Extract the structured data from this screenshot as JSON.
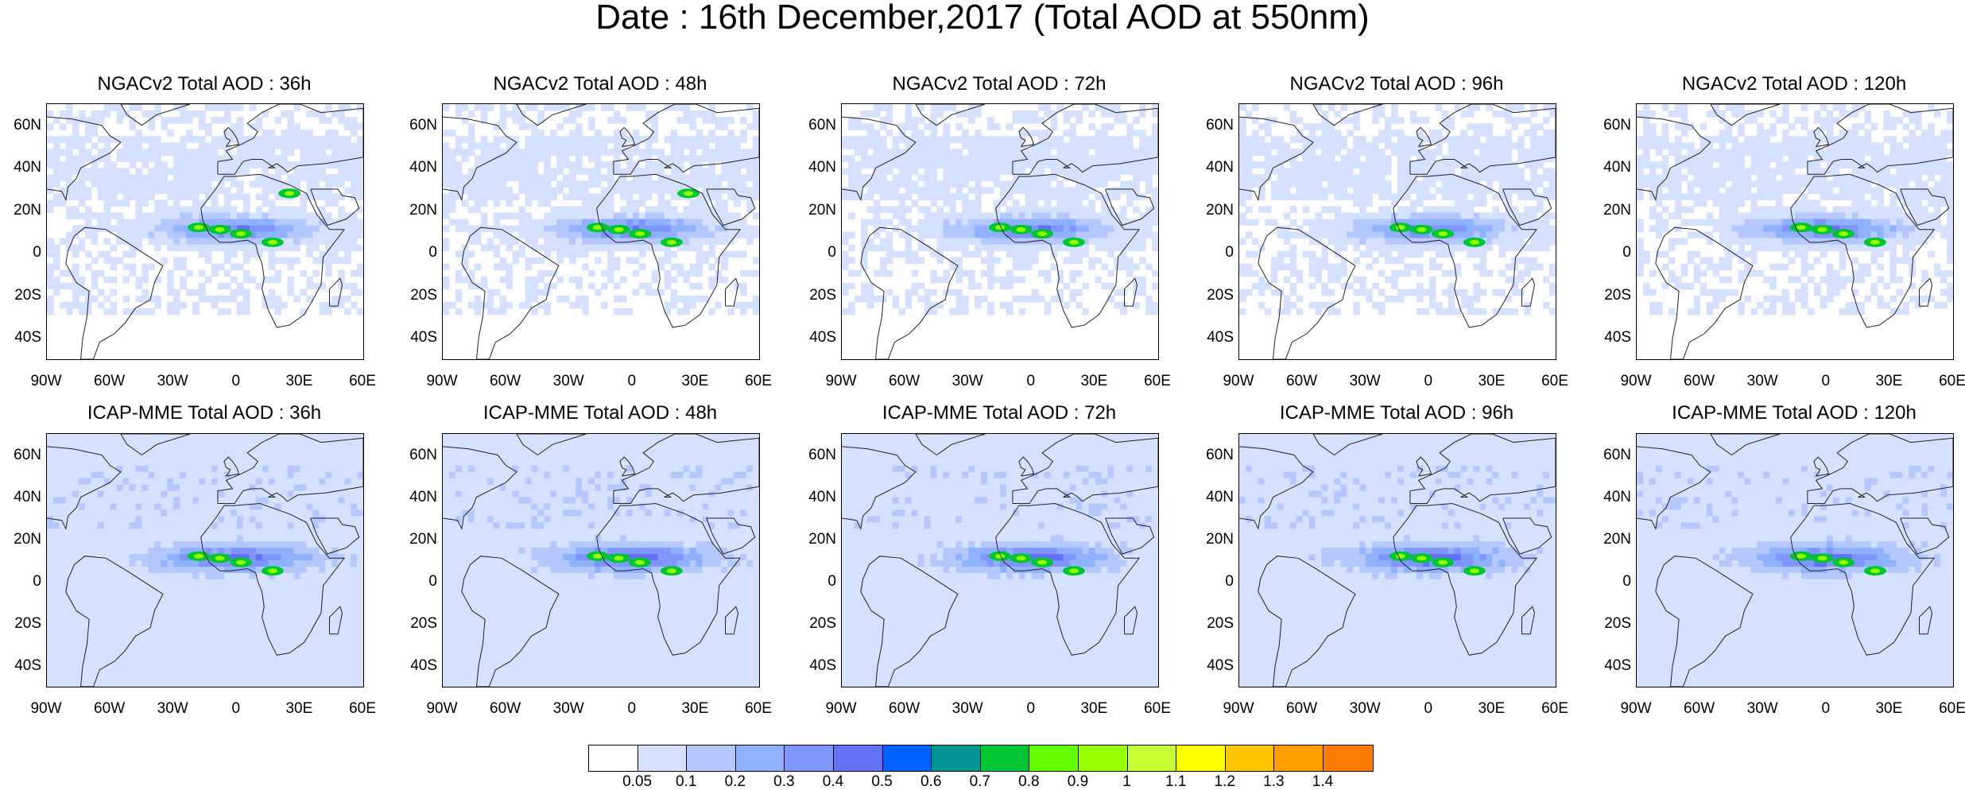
{
  "title": "Date : 16th December,2017 (Total AOD at 550nm)",
  "rows": [
    {
      "name": "ngac",
      "panels": [
        {
          "title": "NGACv2 Total AOD : 36h"
        },
        {
          "title": "NGACv2 Total AOD : 48h"
        },
        {
          "title": "NGACv2 Total AOD : 72h"
        },
        {
          "title": "NGACv2 Total AOD : 96h"
        },
        {
          "title": "NGACv2 Total AOD : 120h"
        }
      ]
    },
    {
      "name": "icap",
      "panels": [
        {
          "title": "ICAP-MME Total AOD : 36h"
        },
        {
          "title": "ICAP-MME Total AOD : 48h"
        },
        {
          "title": "ICAP-MME Total AOD : 72h"
        },
        {
          "title": "ICAP-MME Total AOD : 96h"
        },
        {
          "title": "ICAP-MME Total AOD : 120h"
        }
      ]
    }
  ],
  "axes": {
    "lon_ticks": [
      "90W",
      "60W",
      "30W",
      "0",
      "30E",
      "60E"
    ],
    "lat_ticks": [
      "60N",
      "40N",
      "20N",
      "0",
      "20S",
      "40S"
    ],
    "lon_range": [
      -90,
      60
    ],
    "lat_range": [
      -50,
      70
    ]
  },
  "colorbar": {
    "labels": [
      "0.05",
      "0.1",
      "0.2",
      "0.3",
      "0.4",
      "0.5",
      "0.6",
      "0.7",
      "0.8",
      "0.9",
      "1",
      "1.1",
      "1.2",
      "1.3",
      "1.4"
    ],
    "colors": [
      "#ffffff",
      "#d6e0ff",
      "#b5c7ff",
      "#8eb2ff",
      "#7f96ff",
      "#6370f8",
      "#0063ff",
      "#009696",
      "#00c633",
      "#63ff00",
      "#96ff00",
      "#c6ff33",
      "#ffff00",
      "#ffc600",
      "#ffa000",
      "#ff7c00",
      "#ff1900"
    ]
  }
}
